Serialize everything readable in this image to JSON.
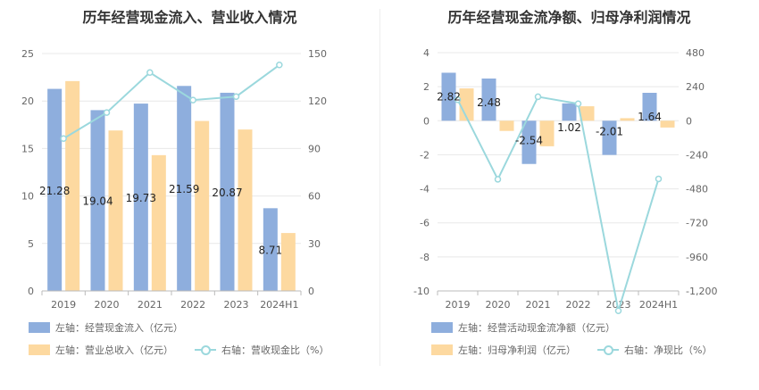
{
  "left_title": "历年经营现金流入、营业收入情况",
  "right_title": "历年经营现金流净额、归母净利润情况",
  "colors": {
    "bar_blue": "#8eaedd",
    "bar_orange": "#fdd9a0",
    "line": "#9bd8dd",
    "grid": "#e8e8e8",
    "axis": "#bbbbbb"
  },
  "chart_data": [
    {
      "type": "bar",
      "categories": [
        "2019",
        "2020",
        "2021",
        "2022",
        "2023",
        "2024H1"
      ],
      "y_left": {
        "min": 0,
        "max": 25,
        "ticks": [
          "0",
          "5",
          "10",
          "15",
          "20",
          "25"
        ]
      },
      "y_right": {
        "min": 0,
        "max": 150,
        "ticks": [
          "0",
          "30",
          "60",
          "90",
          "120",
          "150"
        ]
      },
      "series": [
        {
          "name": "左轴：经营现金流入（亿元）",
          "axis": "left",
          "kind": "bar",
          "values": [
            21.28,
            19.04,
            19.73,
            21.59,
            20.87,
            8.71
          ],
          "labels": [
            "21.28",
            "19.04",
            "19.73",
            "21.59",
            "20.87",
            "8.71"
          ]
        },
        {
          "name": "左轴：营业总收入（亿元）",
          "axis": "left",
          "kind": "bar",
          "values": [
            22.1,
            16.9,
            14.3,
            17.9,
            17.0,
            6.1
          ]
        },
        {
          "name": "右轴：营收现金比（%）",
          "axis": "right",
          "kind": "line",
          "values": [
            96.3,
            112.7,
            138.0,
            120.6,
            122.8,
            142.8
          ]
        }
      ]
    },
    {
      "type": "bar",
      "categories": [
        "2019",
        "2020",
        "2021",
        "2022",
        "2023",
        "2024H1"
      ],
      "y_left": {
        "min": -10,
        "max": 4,
        "ticks": [
          "-10",
          "-8",
          "-6",
          "-4",
          "-2",
          "0",
          "2",
          "4"
        ]
      },
      "y_right": {
        "min": -1200,
        "max": 480,
        "ticks": [
          "-1,200",
          "-960",
          "-720",
          "-480",
          "-240",
          "0",
          "240",
          "480"
        ]
      },
      "series": [
        {
          "name": "左轴：经营活动现金流净额（亿元）",
          "axis": "left",
          "kind": "bar",
          "values": [
            2.82,
            2.48,
            -2.54,
            1.02,
            -2.01,
            1.64
          ],
          "labels": [
            "2.82",
            "2.48",
            "-2.54",
            "1.02",
            "-2.01",
            "1.64"
          ]
        },
        {
          "name": "左轴：归母净利润（亿元）",
          "axis": "left",
          "kind": "bar",
          "values": [
            1.9,
            -0.6,
            -1.5,
            0.85,
            0.15,
            -0.4
          ]
        },
        {
          "name": "右轴：净现比（%）",
          "axis": "right",
          "kind": "line",
          "values": [
            148.0,
            -413.0,
            169.0,
            120.0,
            -1340.0,
            -410.0
          ]
        }
      ]
    }
  ]
}
